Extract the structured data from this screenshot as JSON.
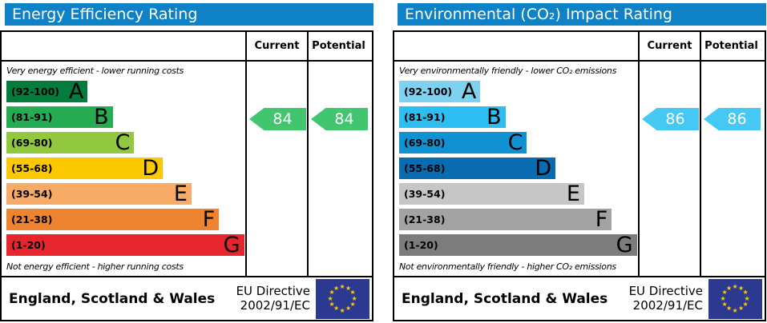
{
  "colors": {
    "header_bg": "#0f81c6",
    "border": "#000000",
    "eu_flag_bg": "#2b3990",
    "eu_star": "#ffcc00"
  },
  "panels": [
    {
      "title": "Energy Efficiency Rating",
      "columns": {
        "current": "Current",
        "potential": "Potential"
      },
      "top_caption": "Very energy efficient - lower running costs",
      "bottom_caption": "Not energy efficient - higher running costs",
      "bands": [
        {
          "letter": "A",
          "range": "(92-100)",
          "min": 92,
          "max": 100,
          "color": "#037c3e",
          "width_pct": 34
        },
        {
          "letter": "B",
          "range": "(81-91)",
          "min": 81,
          "max": 91,
          "color": "#25ab52",
          "width_pct": 44.5
        },
        {
          "letter": "C",
          "range": "(69-80)",
          "min": 69,
          "max": 80,
          "color": "#92c83e",
          "width_pct": 53.5
        },
        {
          "letter": "D",
          "range": "(55-68)",
          "min": 55,
          "max": 68,
          "color": "#fcc900",
          "width_pct": 65.5
        },
        {
          "letter": "E",
          "range": "(39-54)",
          "min": 39,
          "max": 54,
          "color": "#f8aa67",
          "width_pct": 77.5
        },
        {
          "letter": "F",
          "range": "(21-38)",
          "min": 21,
          "max": 38,
          "color": "#ee8430",
          "width_pct": 89
        },
        {
          "letter": "G",
          "range": "(1-20)",
          "min": 1,
          "max": 20,
          "color": "#e7252d",
          "width_pct": 99.5
        }
      ],
      "current": {
        "value": 84
      },
      "potential": {
        "value": 84
      },
      "arrow_color": "#41c56f",
      "footer": {
        "region": "England, Scotland & Wales",
        "directive_line1": "EU Directive",
        "directive_line2": "2002/91/EC"
      }
    },
    {
      "title": "Environmental (CO₂) Impact Rating",
      "columns": {
        "current": "Current",
        "potential": "Potential"
      },
      "top_caption": "Very environmentally friendly - lower CO₂ emissions",
      "bottom_caption": "Not environmentally friendly - higher CO₂ emissions",
      "bands": [
        {
          "letter": "A",
          "range": "(92-100)",
          "min": 92,
          "max": 100,
          "color": "#7fd1f0",
          "width_pct": 34
        },
        {
          "letter": "B",
          "range": "(81-91)",
          "min": 81,
          "max": 91,
          "color": "#2dbdf0",
          "width_pct": 44.5
        },
        {
          "letter": "C",
          "range": "(69-80)",
          "min": 69,
          "max": 80,
          "color": "#1092d2",
          "width_pct": 53.5
        },
        {
          "letter": "D",
          "range": "(55-68)",
          "min": 55,
          "max": 68,
          "color": "#0a6cb0",
          "width_pct": 65.5
        },
        {
          "letter": "E",
          "range": "(39-54)",
          "min": 39,
          "max": 54,
          "color": "#c6c6c6",
          "width_pct": 77.5
        },
        {
          "letter": "F",
          "range": "(21-38)",
          "min": 21,
          "max": 38,
          "color": "#a3a3a3",
          "width_pct": 89
        },
        {
          "letter": "G",
          "range": "(1-20)",
          "min": 1,
          "max": 20,
          "color": "#7c7c7c",
          "width_pct": 99.5
        }
      ],
      "current": {
        "value": 86
      },
      "potential": {
        "value": 86
      },
      "arrow_color": "#45c8f3",
      "footer": {
        "region": "England, Scotland & Wales",
        "directive_line1": "EU Directive",
        "directive_line2": "2002/91/EC"
      }
    }
  ],
  "chart_data": [
    {
      "type": "bar",
      "title": "Energy Efficiency Rating",
      "categories": [
        "A (92-100)",
        "B (81-91)",
        "C (69-80)",
        "D (55-68)",
        "E (39-54)",
        "F (21-38)",
        "G (1-20)"
      ],
      "values": [
        34,
        44.5,
        53.5,
        65.5,
        77.5,
        89,
        99.5
      ],
      "values_note": "relative bar widths in % of band column",
      "current_rating": 84,
      "current_band": "B",
      "potential_rating": 84,
      "potential_band": "B",
      "xlabel": "",
      "ylabel": "",
      "legend": [
        "Current",
        "Potential"
      ]
    },
    {
      "type": "bar",
      "title": "Environmental (CO₂) Impact Rating",
      "categories": [
        "A (92-100)",
        "B (81-91)",
        "C (69-80)",
        "D (55-68)",
        "E (39-54)",
        "F (21-38)",
        "G (1-20)"
      ],
      "values": [
        34,
        44.5,
        53.5,
        65.5,
        77.5,
        89,
        99.5
      ],
      "values_note": "relative bar widths in % of band column",
      "current_rating": 86,
      "current_band": "B",
      "potential_rating": 86,
      "potential_band": "B",
      "xlabel": "",
      "ylabel": "",
      "legend": [
        "Current",
        "Potential"
      ]
    }
  ]
}
